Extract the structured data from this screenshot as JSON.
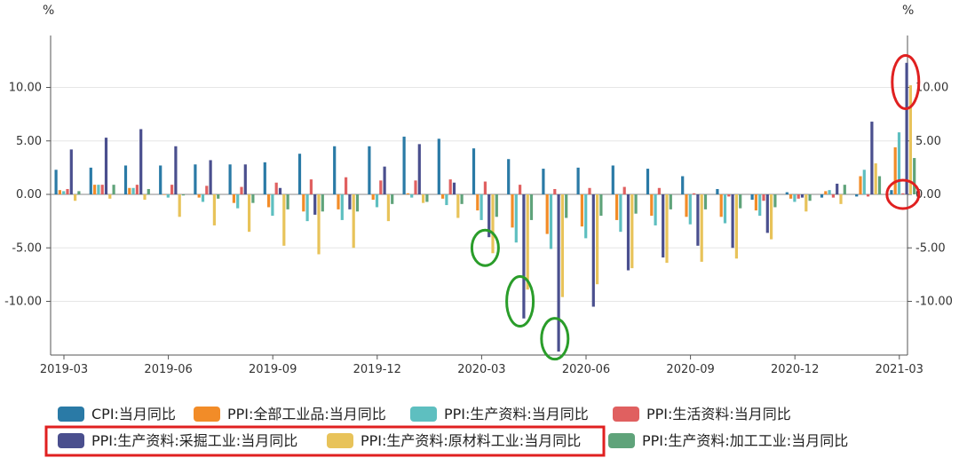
{
  "chart_data": {
    "type": "bar",
    "y_unit_left": "%",
    "y_unit_right": "%",
    "y_ticks": [
      "-10.00",
      "-5.00",
      "0.00",
      "5.00",
      "10.00"
    ],
    "ylim": [
      -15,
      15
    ],
    "grid": "horizontal",
    "legend_position": "bottom",
    "x_tick_labels": [
      "2019-03",
      "2019-06",
      "2019-09",
      "2019-12",
      "2020-03",
      "2020-06",
      "2020-09",
      "2020-12",
      "2021-03"
    ],
    "categories": [
      "2019-03",
      "2019-04",
      "2019-05",
      "2019-06",
      "2019-07",
      "2019-08",
      "2019-09",
      "2019-10",
      "2019-11",
      "2019-12",
      "2020-01",
      "2020-02",
      "2020-03",
      "2020-04",
      "2020-05",
      "2020-06",
      "2020-07",
      "2020-08",
      "2020-09",
      "2020-10",
      "2020-11",
      "2020-12",
      "2021-01",
      "2021-02",
      "2021-03"
    ],
    "series": [
      {
        "name": "CPI:当月同比",
        "color": "#2a7aa6",
        "values": [
          2.3,
          2.5,
          2.7,
          2.7,
          2.8,
          2.8,
          3.0,
          3.8,
          4.5,
          4.5,
          5.4,
          5.2,
          4.3,
          3.3,
          2.4,
          2.5,
          2.7,
          2.4,
          1.7,
          0.5,
          -0.5,
          0.2,
          -0.3,
          -0.2,
          0.4
        ]
      },
      {
        "name": "PPI:全部工业品:当月同比",
        "color": "#f28c28",
        "values": [
          0.4,
          0.9,
          0.6,
          0.0,
          -0.3,
          -0.8,
          -1.2,
          -1.6,
          -1.4,
          -0.5,
          0.1,
          -0.4,
          -1.5,
          -3.1,
          -3.7,
          -3.0,
          -2.4,
          -2.0,
          -2.1,
          -2.1,
          -1.5,
          -0.4,
          0.3,
          1.7,
          4.4
        ]
      },
      {
        "name": "PPI:生产资料:当月同比",
        "color": "#5ebfc0",
        "values": [
          0.3,
          0.9,
          0.6,
          -0.3,
          -0.7,
          -1.3,
          -2.0,
          -2.5,
          -2.4,
          -1.2,
          -0.3,
          -1.0,
          -2.4,
          -4.5,
          -5.1,
          -4.1,
          -3.5,
          -2.9,
          -2.8,
          -2.7,
          -2.0,
          -0.7,
          0.4,
          2.3,
          5.8
        ]
      },
      {
        "name": "PPI:生活资料:当月同比",
        "color": "#e06060",
        "values": [
          0.5,
          0.9,
          0.9,
          0.9,
          0.8,
          0.7,
          1.1,
          1.4,
          1.6,
          1.3,
          1.3,
          1.4,
          1.2,
          0.9,
          0.5,
          0.6,
          0.7,
          0.6,
          0.1,
          -0.2,
          -0.6,
          -0.4,
          -0.3,
          -0.2,
          0.1
        ]
      },
      {
        "name": "PPI:生产资料:采掘工业:当月同比",
        "color": "#4a4f8e",
        "values": [
          4.2,
          5.3,
          6.1,
          4.5,
          3.2,
          2.8,
          0.6,
          -1.9,
          -1.4,
          2.6,
          4.7,
          1.1,
          -4.0,
          -11.6,
          -14.7,
          -10.5,
          -7.1,
          -5.9,
          -4.8,
          -5.0,
          -3.6,
          -0.3,
          1.0,
          6.8,
          12.3
        ]
      },
      {
        "name": "PPI:生产资料:原材料工业:当月同比",
        "color": "#e8c35a",
        "values": [
          -0.6,
          -0.4,
          -0.5,
          -2.1,
          -2.9,
          -3.5,
          -4.8,
          -5.6,
          -5.0,
          -2.5,
          -0.8,
          -2.2,
          -5.5,
          -8.9,
          -9.6,
          -8.4,
          -6.9,
          -6.4,
          -6.3,
          -6.0,
          -4.2,
          -1.6,
          -0.9,
          2.9,
          10.2
        ]
      },
      {
        "name": "PPI:生产资料:加工工业:当月同比",
        "color": "#5fa37a",
        "values": [
          0.3,
          0.9,
          0.5,
          -0.1,
          -0.4,
          -0.8,
          -1.4,
          -1.6,
          -1.6,
          -0.9,
          -0.7,
          -0.9,
          -2.1,
          -2.4,
          -2.2,
          -2.0,
          -1.8,
          -1.4,
          -1.4,
          -1.3,
          -1.2,
          -0.6,
          0.9,
          1.7,
          3.4
        ]
      }
    ],
    "annotations": [
      {
        "shape": "ellipse",
        "color": "#e02020",
        "category": "2021-03",
        "y": 10.5
      },
      {
        "shape": "ellipse",
        "color": "#e02020",
        "category": "2021-03",
        "y": 0.0
      },
      {
        "shape": "ellipse",
        "color": "#2a9d2a",
        "category": "2020-03",
        "y": -5.0
      },
      {
        "shape": "ellipse",
        "color": "#2a9d2a",
        "category": "2020-04",
        "y": -10.0
      },
      {
        "shape": "ellipse",
        "color": "#2a9d2a",
        "category": "2020-05",
        "y": -13.5
      }
    ],
    "legend_highlight": {
      "color": "#e02020",
      "series": [
        4,
        5
      ]
    }
  }
}
